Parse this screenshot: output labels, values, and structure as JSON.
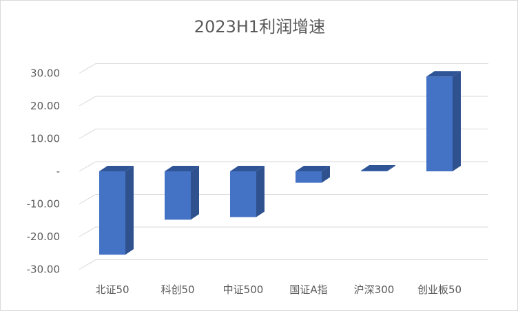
{
  "chart_data": {
    "type": "bar",
    "title": "2023H1利润增速",
    "categories": [
      "北证50",
      "科创50",
      "中证500",
      "国证A指",
      "沪深300",
      "创业板50"
    ],
    "values": [
      -25.5,
      -14.8,
      -14.0,
      -3.5,
      0.2,
      29.0
    ],
    "ylim": [
      -30,
      30
    ],
    "ytick_values": [
      30,
      20,
      10,
      0,
      -10,
      -20,
      -30
    ],
    "ytick_labels": [
      "30.00",
      "20.00",
      "10.00",
      "-",
      "-10.00",
      "-20.00",
      "-30.00"
    ],
    "grid": true,
    "legend": "none",
    "style": "3d-column"
  },
  "colors": {
    "bar_front": "#4472c4",
    "bar_side": "#2f528f",
    "bar_top": "#2f5597",
    "gridline": "#d9d9d9",
    "text": "#595959"
  }
}
